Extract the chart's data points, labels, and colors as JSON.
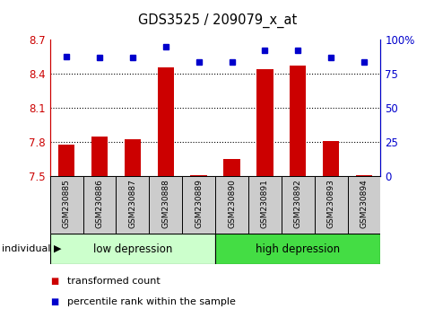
{
  "title": "GDS3525 / 209079_x_at",
  "samples": [
    "GSM230885",
    "GSM230886",
    "GSM230887",
    "GSM230888",
    "GSM230889",
    "GSM230890",
    "GSM230891",
    "GSM230892",
    "GSM230893",
    "GSM230894"
  ],
  "transformed_count": [
    7.78,
    7.85,
    7.83,
    8.46,
    7.51,
    7.65,
    8.44,
    8.47,
    7.81,
    7.51
  ],
  "percentile_rank": [
    88,
    87,
    87,
    95,
    84,
    84,
    92,
    92,
    87,
    84
  ],
  "ylim": [
    7.5,
    8.7
  ],
  "yticks_left": [
    7.5,
    7.8,
    8.1,
    8.4,
    8.7
  ],
  "yticks_right": [
    0,
    25,
    50,
    75,
    100
  ],
  "bar_color": "#cc0000",
  "dot_color": "#0000cc",
  "bar_width": 0.5,
  "groups": [
    {
      "label": "low depression",
      "start": 0,
      "end": 4,
      "color": "#ccffcc"
    },
    {
      "label": "high depression",
      "start": 5,
      "end": 9,
      "color": "#44dd44"
    }
  ],
  "legend_items": [
    {
      "label": "transformed count",
      "color": "#cc0000"
    },
    {
      "label": "percentile rank within the sample",
      "color": "#0000cc"
    }
  ],
  "tick_label_area_color": "#cccccc",
  "left_axis_color": "#cc0000",
  "right_axis_color": "#0000cc",
  "grid_ticks": [
    7.8,
    8.1,
    8.4
  ]
}
